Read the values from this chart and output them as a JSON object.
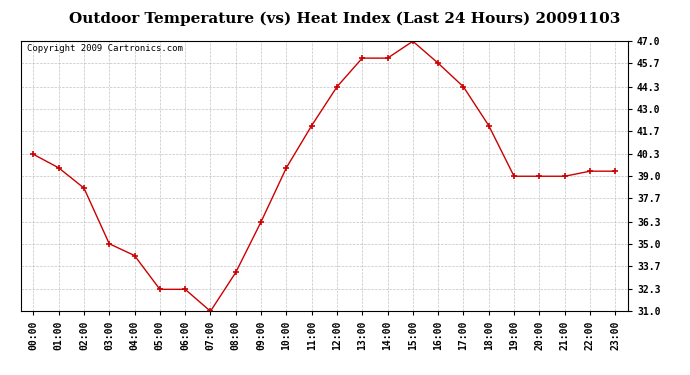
{
  "title": "Outdoor Temperature (vs) Heat Index (Last 24 Hours) 20091103",
  "copyright": "Copyright 2009 Cartronics.com",
  "x_labels": [
    "00:00",
    "01:00",
    "02:00",
    "03:00",
    "04:00",
    "05:00",
    "06:00",
    "07:00",
    "08:00",
    "09:00",
    "10:00",
    "11:00",
    "12:00",
    "13:00",
    "14:00",
    "15:00",
    "16:00",
    "17:00",
    "18:00",
    "19:00",
    "20:00",
    "21:00",
    "22:00",
    "23:00"
  ],
  "y_values": [
    40.3,
    39.5,
    38.3,
    35.0,
    34.3,
    32.3,
    32.3,
    31.0,
    33.3,
    36.3,
    39.5,
    42.0,
    44.3,
    46.0,
    46.0,
    47.0,
    45.7,
    44.3,
    42.0,
    39.0,
    39.0,
    39.0,
    39.3,
    39.3
  ],
  "line_color": "#cc0000",
  "marker": "+",
  "marker_size": 5,
  "marker_color": "#cc0000",
  "bg_color": "#ffffff",
  "grid_color": "#aaaaaa",
  "ylim_min": 31.0,
  "ylim_max": 47.0,
  "ytick_values": [
    31.0,
    32.3,
    33.7,
    35.0,
    36.3,
    37.7,
    39.0,
    40.3,
    41.7,
    43.0,
    44.3,
    45.7,
    47.0
  ],
  "title_fontsize": 11,
  "axis_label_fontsize": 7,
  "copyright_fontsize": 6.5
}
